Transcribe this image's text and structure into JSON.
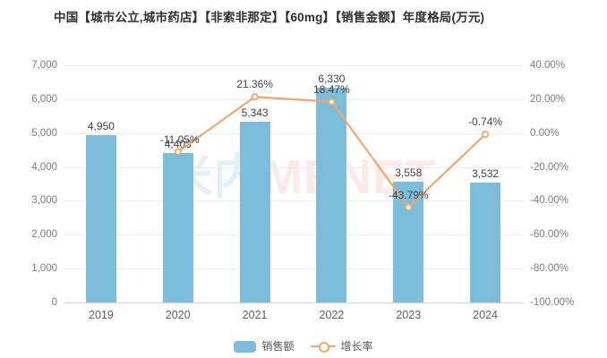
{
  "title": "中国【城市公立,城市药店】【非索非那定】【60mg】【销售金额】年度格局(万元)",
  "watermark": {
    "cn": "米内",
    "en": "MENET"
  },
  "legend": {
    "sales_label": "销售额",
    "growth_label": "增长率"
  },
  "colors": {
    "bar": "#7cbddb",
    "line": "#f0a66a",
    "grid": "#ececec",
    "axis_line": "#d4d4d4",
    "data_label": "#424242",
    "tick_label": "#7b7b7b"
  },
  "chart_data": {
    "type": "bar+line",
    "title": "中国【城市公立,城市药店】【非索非那定】【60mg】【销售金额】年度格局(万元)",
    "categories": [
      "2019",
      "2020",
      "2021",
      "2022",
      "2023",
      "2024"
    ],
    "series": [
      {
        "name": "销售额",
        "type": "bar",
        "axis": "left",
        "values": [
          4950,
          4403,
          5343,
          6330,
          3558,
          3532
        ],
        "labels": [
          "4,950",
          "4,403",
          "5,343",
          "6,330",
          "3,558",
          "3,532"
        ]
      },
      {
        "name": "增长率",
        "type": "line",
        "axis": "right",
        "values": [
          null,
          -11.05,
          21.36,
          18.47,
          -43.79,
          -0.74
        ],
        "labels": [
          null,
          "-11.05%",
          "21.36%",
          "18.47%",
          "-43.79%",
          "-0.74%"
        ]
      }
    ],
    "left_axis": {
      "min": 0,
      "max": 7000,
      "ticks": [
        "7,000",
        "6,000",
        "5,000",
        "4,000",
        "3,000",
        "2,000",
        "1,000",
        "0"
      ]
    },
    "right_axis": {
      "min": -100,
      "max": 40,
      "ticks": [
        "40.00%",
        "20.00%",
        "0.00%",
        "-20.00%",
        "-40.00%",
        "-60.00%",
        "-80.00%",
        "-100.00%"
      ]
    },
    "grid": true,
    "legend_position": "bottom"
  }
}
